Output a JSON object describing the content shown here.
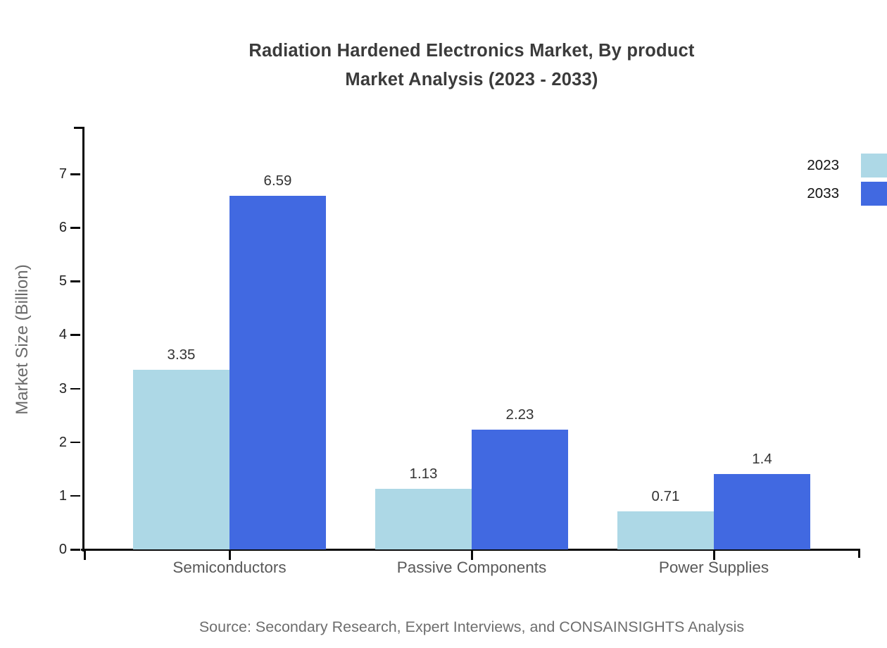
{
  "title": {
    "line1": "Radiation Hardened Electronics Market, By product",
    "line2": "Market Analysis (2023 - 2033)"
  },
  "source": "Source: Secondary Research, Expert Interviews, and CONSAINSIGHTS Analysis",
  "legend": {
    "items": [
      {
        "label": "2023",
        "color": "#ADD8E6"
      },
      {
        "label": "2033",
        "color": "#4169E1"
      }
    ]
  },
  "chart_data": {
    "type": "bar",
    "title": "Radiation Hardened Electronics Market, By product Market Analysis (2023 - 2033)",
    "categories": [
      "Semiconductors",
      "Passive Components",
      "Power Supplies"
    ],
    "series": [
      {
        "name": "2023",
        "color": "#ADD8E6",
        "values": [
          3.35,
          1.13,
          0.71
        ]
      },
      {
        "name": "2033",
        "color": "#4169E1",
        "values": [
          6.59,
          2.23,
          1.4
        ]
      }
    ],
    "xlabel": "",
    "ylabel": "Market Size (Billion)",
    "ylim": [
      0,
      7.9
    ],
    "yticks": [
      0,
      1,
      2,
      3,
      4,
      5,
      6,
      7
    ],
    "grid": false,
    "legend_position": "top-right",
    "bar_value_labels": true,
    "axis_color": "#0a0a0a",
    "label_color": "#595959",
    "value_label_color": "#333333"
  }
}
